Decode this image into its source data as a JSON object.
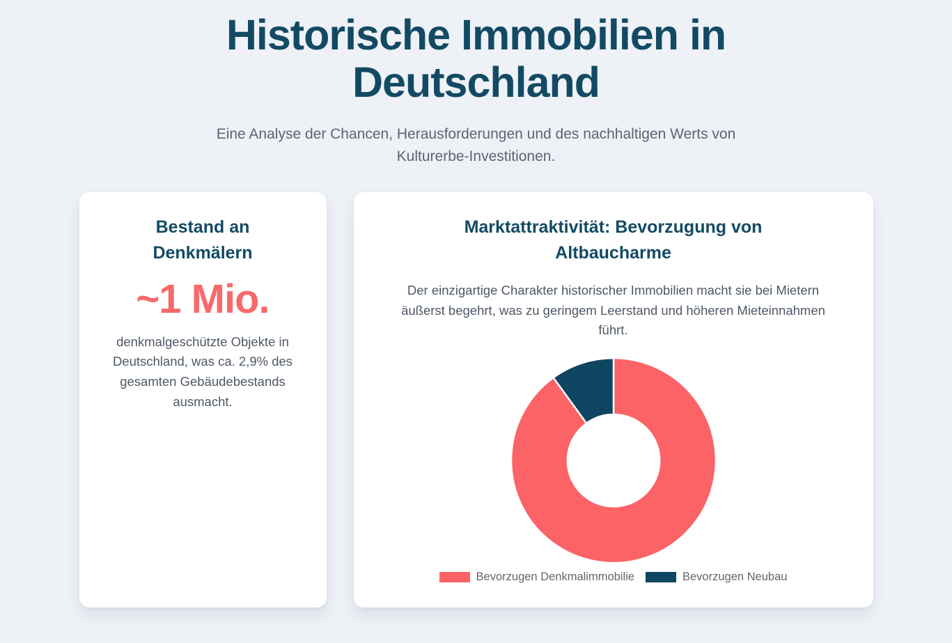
{
  "colors": {
    "background": "#eef1f6",
    "card": "#ffffff",
    "heading": "#134a63",
    "body_text": "#4e5866",
    "subtitle_text": "#5b6573",
    "accent": "#f8696b",
    "legend_text": "#666666"
  },
  "header": {
    "title": "Historische Immobilien in\nDeutschland",
    "subtitle": "Eine Analyse der Chancen, Herausforderungen und des nachhaltigen Werts von\nKulturerbe-Investitionen."
  },
  "stat_card": {
    "title": "Bestand an\nDenkmälern",
    "value": "~1 Mio.",
    "description": "denkmalgeschützte Objekte in\nDeutschland, was ca. 2,9% des\ngesamten Gebäudebestands\nausmacht."
  },
  "chart_card": {
    "title": "Marktattraktivität: Bevorzugung von\nAltbaucharme",
    "description": "Der einzigartige Charakter historischer Immobilien macht sie bei Mietern\näußerst begehrt, was zu geringem Leerstand und höheren Mieteinnahmen\nführt."
  },
  "chart_data": {
    "type": "pie",
    "subtype": "doughnut",
    "title": "Marktattraktivität: Bevorzugung von Altbaucharme",
    "labels": [
      "Bevorzugen Denkmalimmobilie",
      "Bevorzugen Neubau"
    ],
    "values": [
      90,
      10
    ],
    "unit": "percent",
    "colors": [
      "#fb6366",
      "#0e4561"
    ],
    "cutout_percent": 45,
    "start_angle_deg": -90,
    "direction": "clockwise",
    "legend_position": "bottom",
    "border_color": "#ffffff"
  }
}
